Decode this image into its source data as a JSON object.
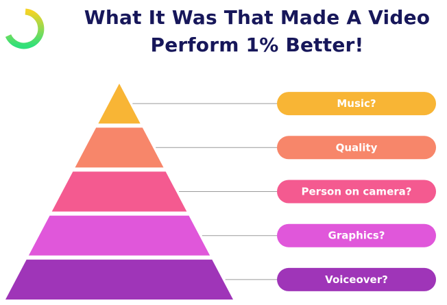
{
  "header": {
    "title": "What It Was That Made A Video Perform 1% Better!"
  },
  "levels": [
    {
      "label": "Music?",
      "color": "#f8b535"
    },
    {
      "label": "Quality",
      "color": "#f7866a"
    },
    {
      "label": "Person on camera?",
      "color": "#f45a90"
    },
    {
      "label": "Graphics?",
      "color": "#e057da"
    },
    {
      "label": "Voiceover?",
      "color": "#9f35b8"
    }
  ]
}
